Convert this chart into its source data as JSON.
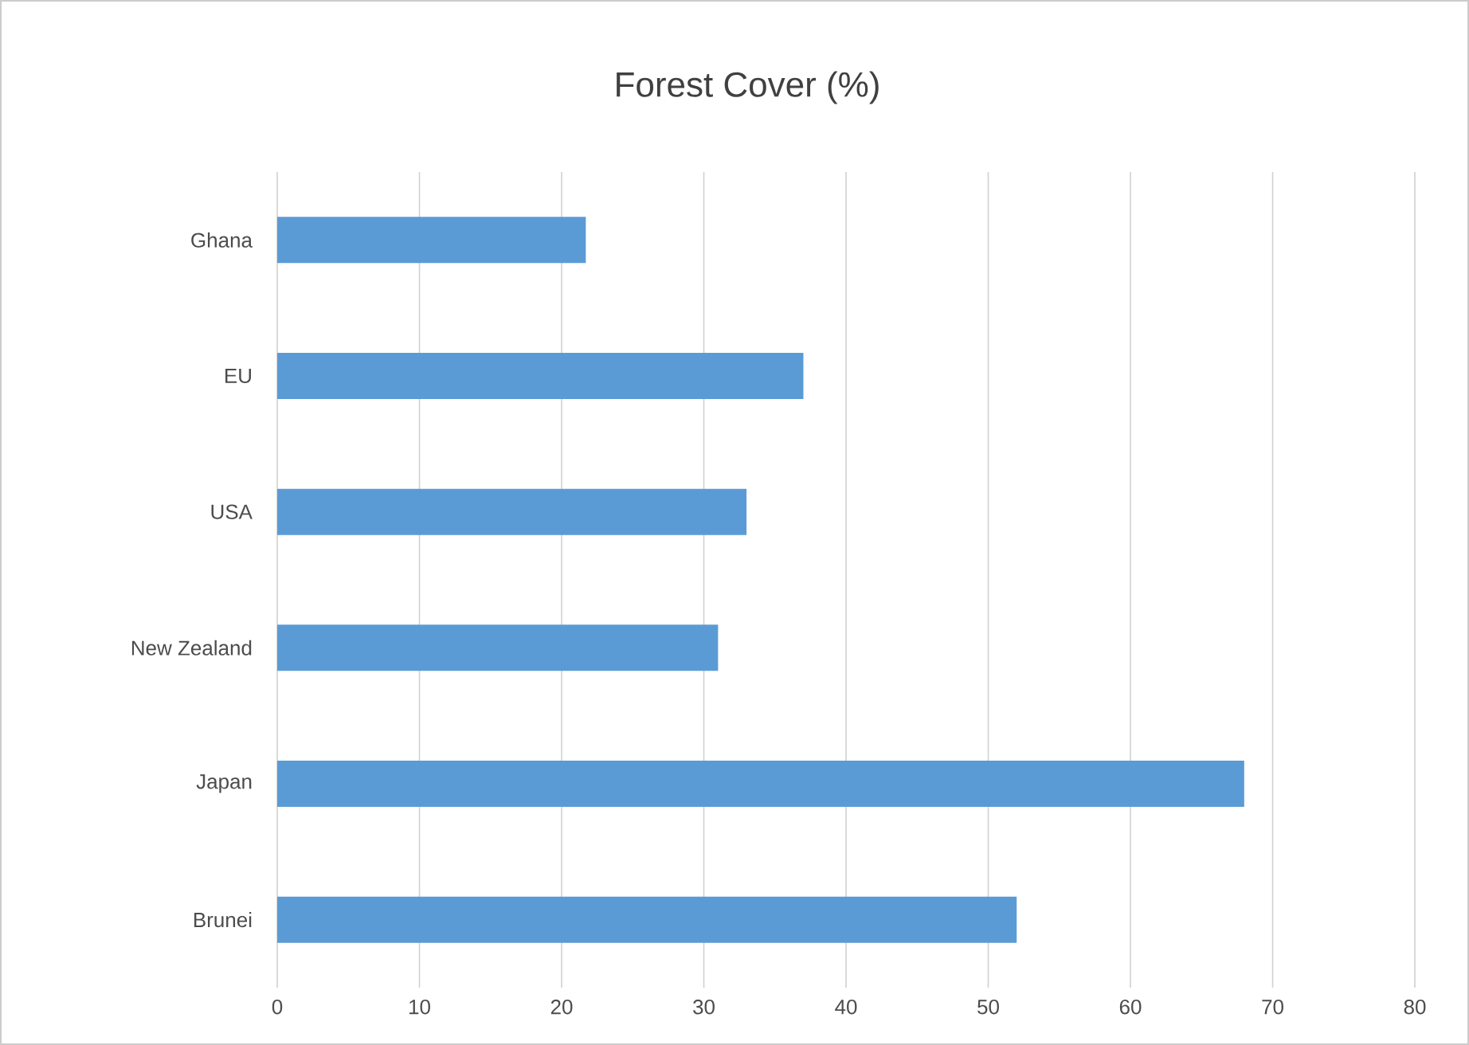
{
  "chart_data": {
    "type": "bar",
    "orientation": "horizontal",
    "title": "Forest Cover (%)",
    "categories": [
      "Ghana",
      "EU",
      "USA",
      "New Zealand",
      "Japan",
      "Brunei"
    ],
    "values": [
      21.7,
      37,
      33,
      31,
      68,
      52
    ],
    "color": "#5b9bd5",
    "xlim": [
      0,
      80
    ],
    "xticks": [
      0,
      10,
      20,
      30,
      40,
      50,
      60,
      70,
      80
    ],
    "grid": "x"
  }
}
